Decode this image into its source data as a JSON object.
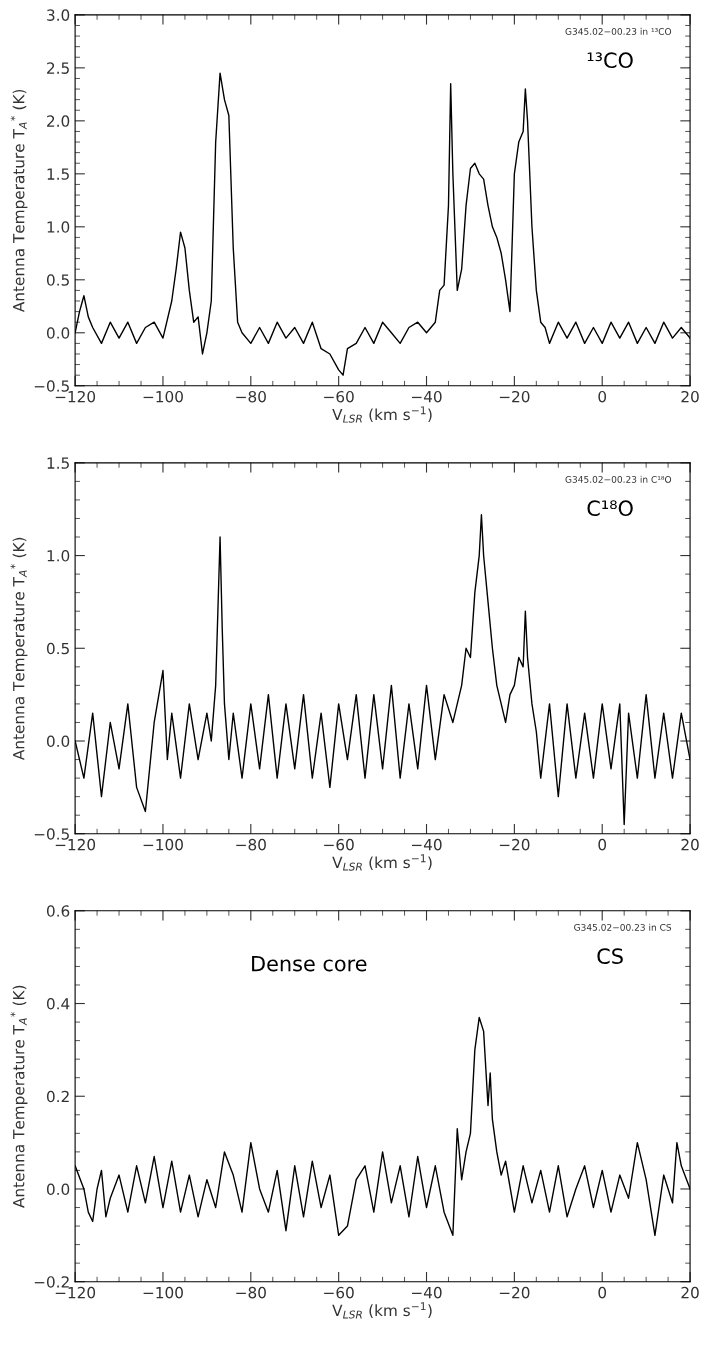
{
  "chart_data": [
    {
      "type": "line",
      "xlabel": "V$_{LSR}$ (km s$^{−1}$)",
      "ylabel": "Antenna Temperature T$_{A}$$^{*}$ (K)",
      "annotations": [
        "G345.02−00.23 in ¹³CO",
        "¹³CO"
      ],
      "xlim": [
        -120,
        20
      ],
      "ylim": [
        -0.5,
        3.0
      ],
      "xticks": [
        {
          "value": -120,
          "label": "−120"
        },
        {
          "value": -100,
          "label": "−100"
        },
        {
          "value": -80,
          "label": "−80"
        },
        {
          "value": -60,
          "label": "−60"
        },
        {
          "value": -40,
          "label": "−40"
        },
        {
          "value": -20,
          "label": "−20"
        },
        0,
        20
      ],
      "yticks": [
        {
          "value": -0.5,
          "label": "−0.5"
        },
        {
          "value": 0,
          "label": "0.0"
        },
        {
          "value": 0.5,
          "label": "0.5"
        },
        {
          "value": 1.0,
          "label": "1.0"
        },
        {
          "value": 1.5,
          "label": "1.5"
        },
        {
          "value": 2.0,
          "label": "2.0"
        },
        {
          "value": 2.5,
          "label": "2.5"
        },
        {
          "value": 3.0,
          "label": "3.0"
        }
      ],
      "grid": false,
      "legend": false,
      "series": [
        {
          "color": "#000000",
          "x": [
            -120,
            -119,
            -118,
            -117,
            -116,
            -114,
            -112,
            -110,
            -108,
            -106,
            -104,
            -102,
            -100,
            -98,
            -97,
            -96,
            -95,
            -94,
            -93,
            -92,
            -91,
            -90,
            -89,
            -88,
            -87,
            -86,
            -85,
            -84,
            -83,
            -82,
            -80,
            -78,
            -76,
            -74,
            -72,
            -70,
            -68,
            -66,
            -64,
            -62,
            -60,
            -59,
            -58,
            -56,
            -54,
            -52,
            -50,
            -48,
            -46,
            -44,
            -42,
            -40,
            -38,
            -37,
            -36,
            -35,
            -34.5,
            -34,
            -33,
            -32,
            -31,
            -30,
            -29,
            -28,
            -27,
            -26,
            -25,
            -24,
            -23,
            -22,
            -21,
            -20,
            -19,
            -18,
            -17.5,
            -17,
            -16,
            -15,
            -14,
            -13,
            -12,
            -10,
            -8,
            -6,
            -4,
            -2,
            0,
            2,
            4,
            6,
            8,
            10,
            12,
            14,
            16,
            18,
            20
          ],
          "values": [
            0.0,
            0.2,
            0.35,
            0.15,
            0.05,
            -0.1,
            0.1,
            -0.05,
            0.1,
            -0.1,
            0.05,
            0.1,
            -0.05,
            0.3,
            0.6,
            0.95,
            0.8,
            0.4,
            0.1,
            0.15,
            -0.2,
            0.0,
            0.3,
            1.8,
            2.45,
            2.2,
            2.05,
            0.8,
            0.1,
            0.0,
            -0.1,
            0.05,
            -0.1,
            0.1,
            -0.05,
            0.05,
            -0.1,
            0.1,
            -0.15,
            -0.2,
            -0.35,
            -0.4,
            -0.15,
            -0.1,
            0.05,
            -0.1,
            0.1,
            0.0,
            -0.1,
            0.05,
            0.1,
            0.0,
            0.1,
            0.4,
            0.45,
            1.2,
            2.35,
            1.5,
            0.4,
            0.6,
            1.2,
            1.55,
            1.6,
            1.5,
            1.45,
            1.2,
            1.0,
            0.9,
            0.75,
            0.5,
            0.2,
            1.5,
            1.8,
            1.9,
            2.3,
            2.0,
            1.0,
            0.4,
            0.1,
            0.05,
            -0.1,
            0.1,
            -0.05,
            0.1,
            -0.1,
            0.05,
            -0.1,
            0.1,
            -0.05,
            0.1,
            -0.1,
            0.05,
            -0.1,
            0.1,
            -0.05,
            0.05,
            -0.05
          ]
        }
      ]
    },
    {
      "type": "line",
      "xlabel": "V$_{LSR}$ (km s$^{−1}$)",
      "ylabel": "Antenna Temperature T$_{A}$$^{*}$ (K)",
      "annotations": [
        "G345.02−00.23 in C¹⁸O",
        "C¹⁸O"
      ],
      "xlim": [
        -120,
        20
      ],
      "ylim": [
        -0.5,
        1.5
      ],
      "xticks": [
        {
          "value": -120,
          "label": "−120"
        },
        {
          "value": -100,
          "label": "−100"
        },
        {
          "value": -80,
          "label": "−80"
        },
        {
          "value": -60,
          "label": "−60"
        },
        {
          "value": -40,
          "label": "−40"
        },
        {
          "value": -20,
          "label": "−20"
        },
        0,
        20
      ],
      "yticks": [
        {
          "value": -0.5,
          "label": "−0.5"
        },
        {
          "value": 0,
          "label": "0.0"
        },
        {
          "value": 0.5,
          "label": "0.5"
        },
        {
          "value": 1.0,
          "label": "1.0"
        },
        {
          "value": 1.5,
          "label": "1.5"
        }
      ],
      "grid": false,
      "legend": false,
      "series": [
        {
          "color": "#000000",
          "x": [
            -120,
            -118,
            -116,
            -114,
            -112,
            -110,
            -108,
            -106,
            -104,
            -102,
            -100,
            -99,
            -98,
            -96,
            -94,
            -92,
            -90,
            -89,
            -88,
            -87.5,
            -87,
            -86.5,
            -86,
            -85,
            -84,
            -82,
            -80,
            -78,
            -76,
            -74,
            -72,
            -70,
            -68,
            -66,
            -64,
            -62,
            -60,
            -58,
            -56,
            -54,
            -52,
            -50,
            -48,
            -46,
            -44,
            -42,
            -40,
            -38,
            -36,
            -34,
            -32,
            -31,
            -30,
            -29,
            -28,
            -27.5,
            -27,
            -26,
            -25,
            -24,
            -23,
            -22,
            -21,
            -20,
            -19,
            -18,
            -17.5,
            -17,
            -16,
            -15,
            -14,
            -12,
            -10,
            -8,
            -6,
            -4,
            -2,
            0,
            2,
            4,
            5,
            6,
            8,
            10,
            12,
            14,
            16,
            18,
            20
          ],
          "values": [
            0.0,
            -0.2,
            0.15,
            -0.3,
            0.1,
            -0.15,
            0.2,
            -0.25,
            -0.38,
            0.1,
            0.38,
            -0.1,
            0.15,
            -0.2,
            0.2,
            -0.1,
            0.15,
            0.0,
            0.3,
            0.7,
            1.1,
            0.6,
            0.2,
            -0.1,
            0.15,
            -0.2,
            0.2,
            -0.15,
            0.25,
            -0.2,
            0.2,
            -0.15,
            0.25,
            -0.2,
            0.15,
            -0.25,
            0.2,
            -0.1,
            0.25,
            -0.2,
            0.25,
            -0.15,
            0.3,
            -0.2,
            0.2,
            -0.15,
            0.3,
            -0.1,
            0.25,
            0.1,
            0.3,
            0.5,
            0.45,
            0.8,
            1.0,
            1.22,
            1.0,
            0.75,
            0.5,
            0.3,
            0.2,
            0.1,
            0.25,
            0.3,
            0.45,
            0.4,
            0.7,
            0.45,
            0.2,
            0.05,
            -0.2,
            0.2,
            -0.3,
            0.2,
            -0.2,
            0.15,
            -0.2,
            0.2,
            -0.15,
            0.2,
            -0.45,
            0.15,
            -0.2,
            0.25,
            -0.2,
            0.15,
            -0.2,
            0.15,
            -0.1
          ]
        }
      ]
    },
    {
      "type": "line",
      "xlabel": "V$_{LSR}$ (km s$^{−1}$)",
      "ylabel": "Antenna Temperature T$_{A}$$^{*}$ (K)",
      "annotations": [
        "G345.02−00.23 in CS",
        "Dense core",
        "CS"
      ],
      "xlim": [
        -120,
        20
      ],
      "ylim": [
        -0.2,
        0.6
      ],
      "xticks": [
        {
          "value": -120,
          "label": "−120"
        },
        {
          "value": -100,
          "label": "−100"
        },
        {
          "value": -80,
          "label": "−80"
        },
        {
          "value": -60,
          "label": "−60"
        },
        {
          "value": -40,
          "label": "−40"
        },
        {
          "value": -20,
          "label": "−20"
        },
        0,
        20
      ],
      "yticks": [
        {
          "value": -0.2,
          "label": "−0.2"
        },
        {
          "value": 0,
          "label": "0.0"
        },
        {
          "value": 0.2,
          "label": "0.2"
        },
        {
          "value": 0.4,
          "label": "0.4"
        },
        {
          "value": 0.6,
          "label": "0.6"
        }
      ],
      "grid": false,
      "legend": false,
      "series": [
        {
          "color": "#000000",
          "x": [
            -120,
            -118,
            -117,
            -116,
            -115,
            -114,
            -113,
            -112,
            -110,
            -108,
            -106,
            -104,
            -102,
            -100,
            -98,
            -96,
            -94,
            -92,
            -90,
            -88,
            -86,
            -84,
            -82,
            -80,
            -78,
            -76,
            -74,
            -72,
            -70,
            -68,
            -66,
            -64,
            -62,
            -60,
            -58,
            -56,
            -54,
            -52,
            -50,
            -48,
            -46,
            -44,
            -42,
            -40,
            -38,
            -36,
            -34,
            -33,
            -32,
            -31,
            -30,
            -29,
            -28,
            -27,
            -26,
            -25.5,
            -25,
            -24,
            -23,
            -22,
            -20,
            -18,
            -16,
            -14,
            -12,
            -10,
            -8,
            -6,
            -4,
            -2,
            0,
            2,
            4,
            6,
            8,
            10,
            12,
            14,
            16,
            17,
            18,
            20
          ],
          "values": [
            0.05,
            0.0,
            -0.05,
            -0.07,
            0.0,
            0.04,
            -0.06,
            -0.02,
            0.03,
            -0.05,
            0.05,
            -0.03,
            0.07,
            -0.04,
            0.06,
            -0.05,
            0.03,
            -0.06,
            0.02,
            -0.04,
            0.08,
            0.03,
            -0.05,
            0.1,
            0.0,
            -0.05,
            0.04,
            -0.09,
            0.05,
            -0.06,
            0.06,
            -0.04,
            0.03,
            -0.1,
            -0.08,
            0.02,
            0.05,
            -0.05,
            0.08,
            -0.03,
            0.05,
            -0.06,
            0.07,
            -0.04,
            0.05,
            -0.05,
            -0.1,
            0.13,
            0.02,
            0.08,
            0.12,
            0.3,
            0.37,
            0.34,
            0.18,
            0.25,
            0.15,
            0.08,
            0.03,
            0.06,
            -0.05,
            0.05,
            -0.03,
            0.04,
            -0.05,
            0.05,
            -0.06,
            0.0,
            0.05,
            -0.04,
            0.04,
            -0.05,
            0.03,
            -0.02,
            0.1,
            0.02,
            -0.1,
            0.03,
            -0.03,
            0.1,
            0.05,
            0.0
          ]
        }
      ]
    }
  ]
}
